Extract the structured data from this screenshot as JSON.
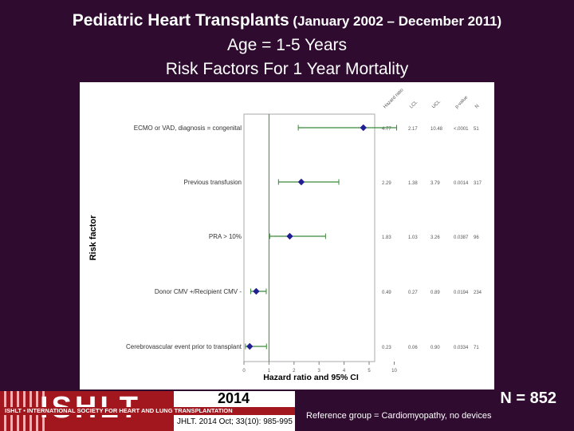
{
  "header": {
    "title_main": "Pediatric Heart Transplants",
    "title_period": " (January 2002 – December 2011)",
    "line2": "Age = 1-5 Years",
    "line3": "Risk Factors For 1 Year Mortality"
  },
  "footer": {
    "logo_text": "ISHLT",
    "logo_band": "ISHLT • INTERNATIONAL SOCIETY FOR HEART AND LUNG TRANSPLANTATION",
    "year": "2014",
    "citation": "JHLT. 2014 Oct; 33(10): 985-995",
    "n_count": "N = 852",
    "reference_note": "Reference group = Cardiomyopathy, no devices"
  },
  "colors": {
    "background": "#2e0b2f",
    "point": "#1f1f8f",
    "ci_line": "#3a8a3a",
    "ref_line": "#3a8a3a",
    "logo_red": "#a2171d"
  },
  "chart_data": {
    "type": "forest",
    "xlabel": "Hazard ratio and 95% CI",
    "ylabel": "Risk factor",
    "xlim": [
      0,
      13
    ],
    "xticks": [
      0,
      1,
      2,
      3,
      4,
      5,
      10
    ],
    "reference_value": 1,
    "column_headers": [
      "Hazard ratio",
      "LCL",
      "UCL",
      "p-value",
      "N"
    ],
    "rows": [
      {
        "label": "ECMO or VAD, diagnosis = congenital",
        "hr": 4.77,
        "lcl": 2.17,
        "ucl": 10.48,
        "hr_text": "4.77",
        "lcl_text": "2.17",
        "ucl_text": "10.48",
        "p_text": "<.0001",
        "n_text": "51"
      },
      {
        "label": "Previous transfusion",
        "hr": 2.29,
        "lcl": 1.38,
        "ucl": 3.79,
        "hr_text": "2.29",
        "lcl_text": "1.38",
        "ucl_text": "3.79",
        "p_text": "0.0014",
        "n_text": "317"
      },
      {
        "label": "PRA > 10%",
        "hr": 1.83,
        "lcl": 1.03,
        "ucl": 3.26,
        "hr_text": "1.83",
        "lcl_text": "1.03",
        "ucl_text": "3.26",
        "p_text": "0.0387",
        "n_text": "96"
      },
      {
        "label": "Donor CMV +/Recipient CMV -",
        "hr": 0.49,
        "lcl": 0.27,
        "ucl": 0.89,
        "hr_text": "0.49",
        "lcl_text": "0.27",
        "ucl_text": "0.89",
        "p_text": "0.0194",
        "n_text": "234"
      },
      {
        "label": "Cerebrovascular event prior to transplant",
        "hr": 0.23,
        "lcl": 0.06,
        "ucl": 0.9,
        "hr_text": "0.23",
        "lcl_text": "0.06",
        "ucl_text": "0.90",
        "p_text": "0.0334",
        "n_text": "71"
      }
    ]
  }
}
